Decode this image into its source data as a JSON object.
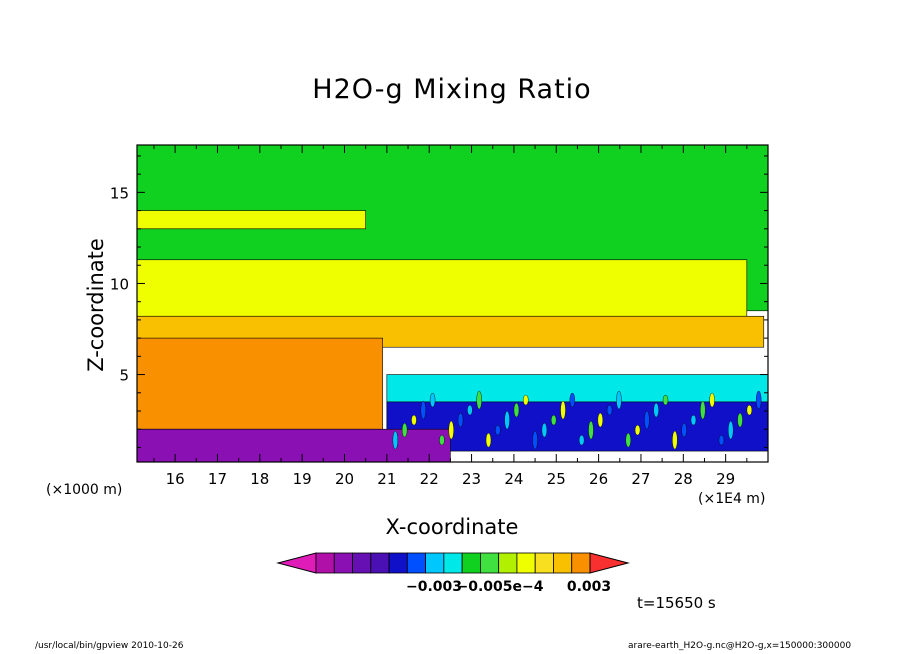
{
  "chart_data": {
    "type": "heatmap",
    "title": "H2O-g Mixing Ratio",
    "xlabel": "X-coordinate",
    "ylabel": "Z-coordinate",
    "x_unit_left": "(×1000 m)",
    "x_unit_right": "(×1E4 m)",
    "x_ticks": [
      16,
      17,
      18,
      19,
      20,
      21,
      22,
      23,
      24,
      25,
      26,
      27,
      28,
      29
    ],
    "y_ticks": [
      5,
      10,
      15
    ],
    "xlim": [
      15.1,
      30.0
    ],
    "ylim": [
      0.2,
      17.6
    ],
    "colorbar": {
      "colors": [
        "#e01cb8",
        "#b010a8",
        "#8a10b4",
        "#6610b4",
        "#4a10b4",
        "#1010c8",
        "#0050ff",
        "#00c8ff",
        "#00e8e8",
        "#10d020",
        "#40e040",
        "#b0f000",
        "#f0ff00",
        "#f8e020",
        "#f8c000",
        "#f89000",
        "#f83030"
      ],
      "tick_labels": [
        "−0.003",
        "−0.005e−4",
        "0.003"
      ]
    },
    "regions": [
      {
        "name": "upper-green",
        "color": "#10d020",
        "x": [
          15.1,
          30.0
        ],
        "z": [
          8.5,
          17.6
        ]
      },
      {
        "name": "yellow-band-high",
        "color": "#f0ff00",
        "x": [
          15.1,
          20.5
        ],
        "z": [
          13.0,
          14.0
        ]
      },
      {
        "name": "yellow-band-mid",
        "color": "#f0ff00",
        "x": [
          15.1,
          29.5
        ],
        "z": [
          8.2,
          11.3
        ]
      },
      {
        "name": "orange-layer",
        "color": "#f8c000",
        "x": [
          15.1,
          29.9
        ],
        "z": [
          6.5,
          8.2
        ]
      },
      {
        "name": "deep-orange-core",
        "color": "#f89000",
        "x": [
          15.1,
          20.9
        ],
        "z": [
          2.0,
          7.0
        ]
      },
      {
        "name": "cyan-zone",
        "color": "#00e8e8",
        "x": [
          21.0,
          30.0
        ],
        "z": [
          1.2,
          5.0
        ]
      },
      {
        "name": "blue-zone",
        "color": "#1010c8",
        "x": [
          21.0,
          30.0
        ],
        "z": [
          0.8,
          3.5
        ]
      },
      {
        "name": "purple-base",
        "color": "#8a10b4",
        "x": [
          15.1,
          22.5
        ],
        "z": [
          0.2,
          2.0
        ]
      }
    ]
  },
  "time_label": "t=15650 s",
  "footer_left": "/usr/local/bin/gpview  2010-10-26",
  "footer_right": "arare-earth_H2O-g.nc@H2O-g,x=150000:300000"
}
